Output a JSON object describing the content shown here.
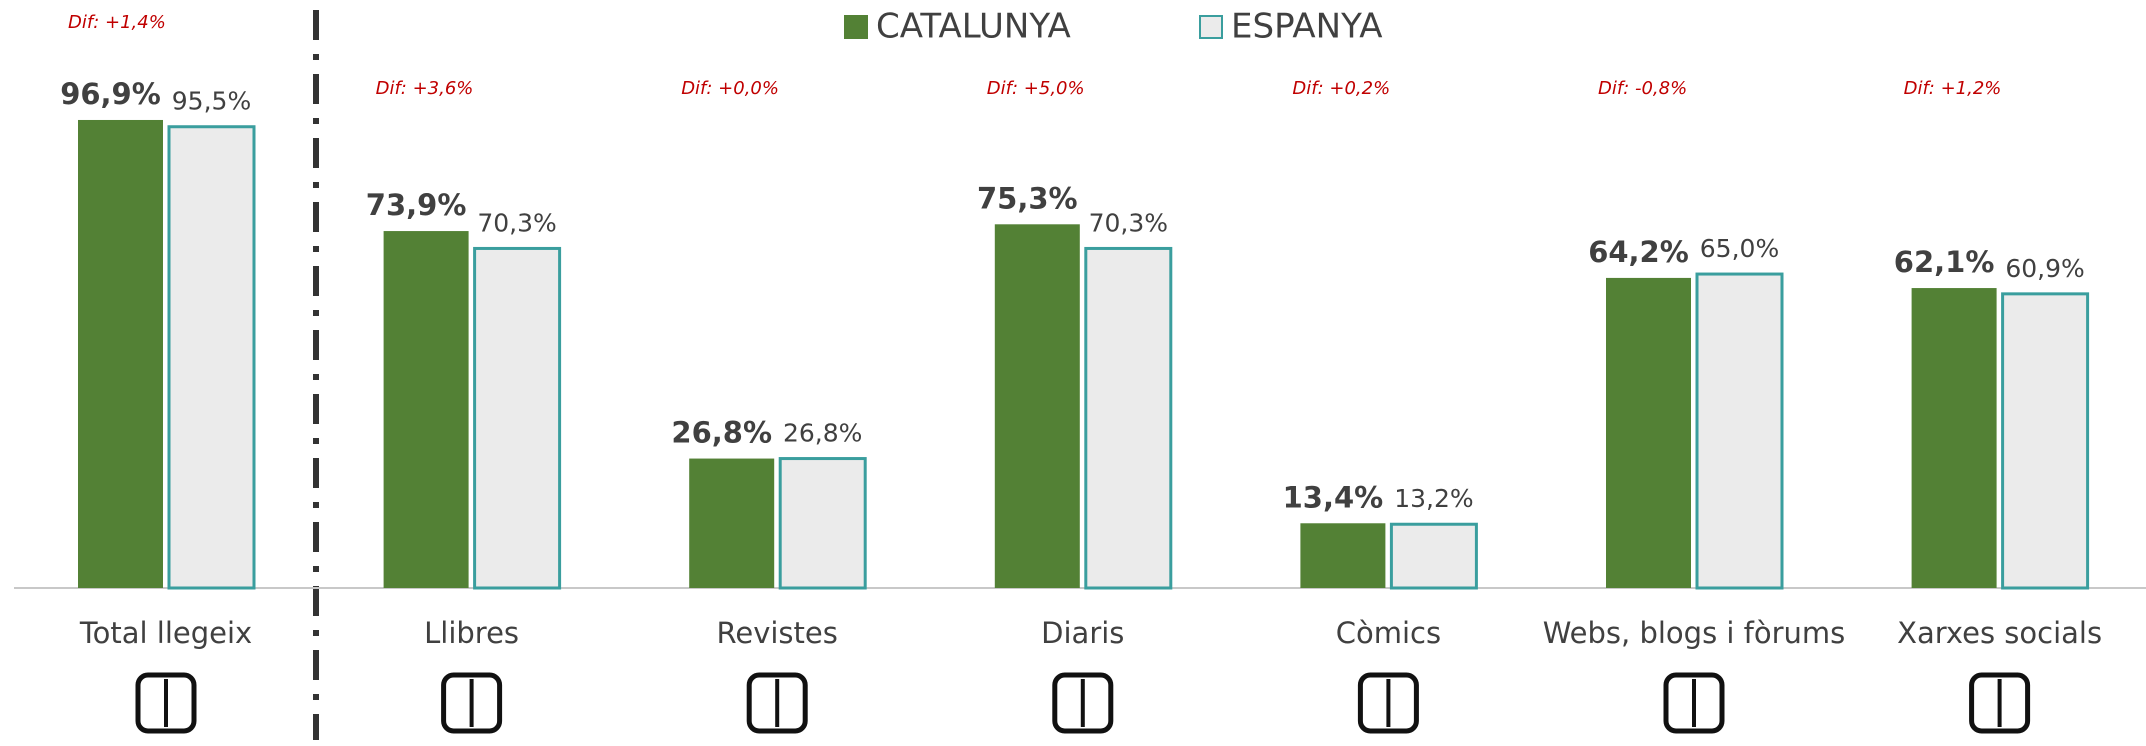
{
  "chart_data": {
    "type": "bar",
    "categories": [
      "Total llegeix",
      "Llibres",
      "Revistes",
      "Diaris",
      "Còmics",
      "Webs, blogs i fòrums",
      "Xarxes socials"
    ],
    "series": [
      {
        "name": "CATALUNYA",
        "color": "#538135",
        "values": [
          96.9,
          73.9,
          26.8,
          75.3,
          13.4,
          64.2,
          62.1
        ],
        "value_labels": [
          "96,9%",
          "73,9%",
          "26,8%",
          "75,3%",
          "13,4%",
          "64,2%",
          "62,1%"
        ]
      },
      {
        "name": "ESPANYA",
        "color": "#ebebeb",
        "edgecolor": "#3a9e9e",
        "values": [
          95.5,
          70.3,
          26.8,
          70.3,
          13.2,
          65.0,
          60.9
        ],
        "value_labels": [
          "95,5%",
          "70,3%",
          "26,8%",
          "70,3%",
          "13,2%",
          "65,0%",
          "60,9%"
        ]
      }
    ],
    "annotations": [
      "Dif: +1,4%",
      "Dif: +3,6%",
      "Dif: +0,0%",
      "Dif: +5,0%",
      "Dif: +0,2%",
      "Dif: -0,8%",
      "Dif: +1,2%"
    ]
  }
}
